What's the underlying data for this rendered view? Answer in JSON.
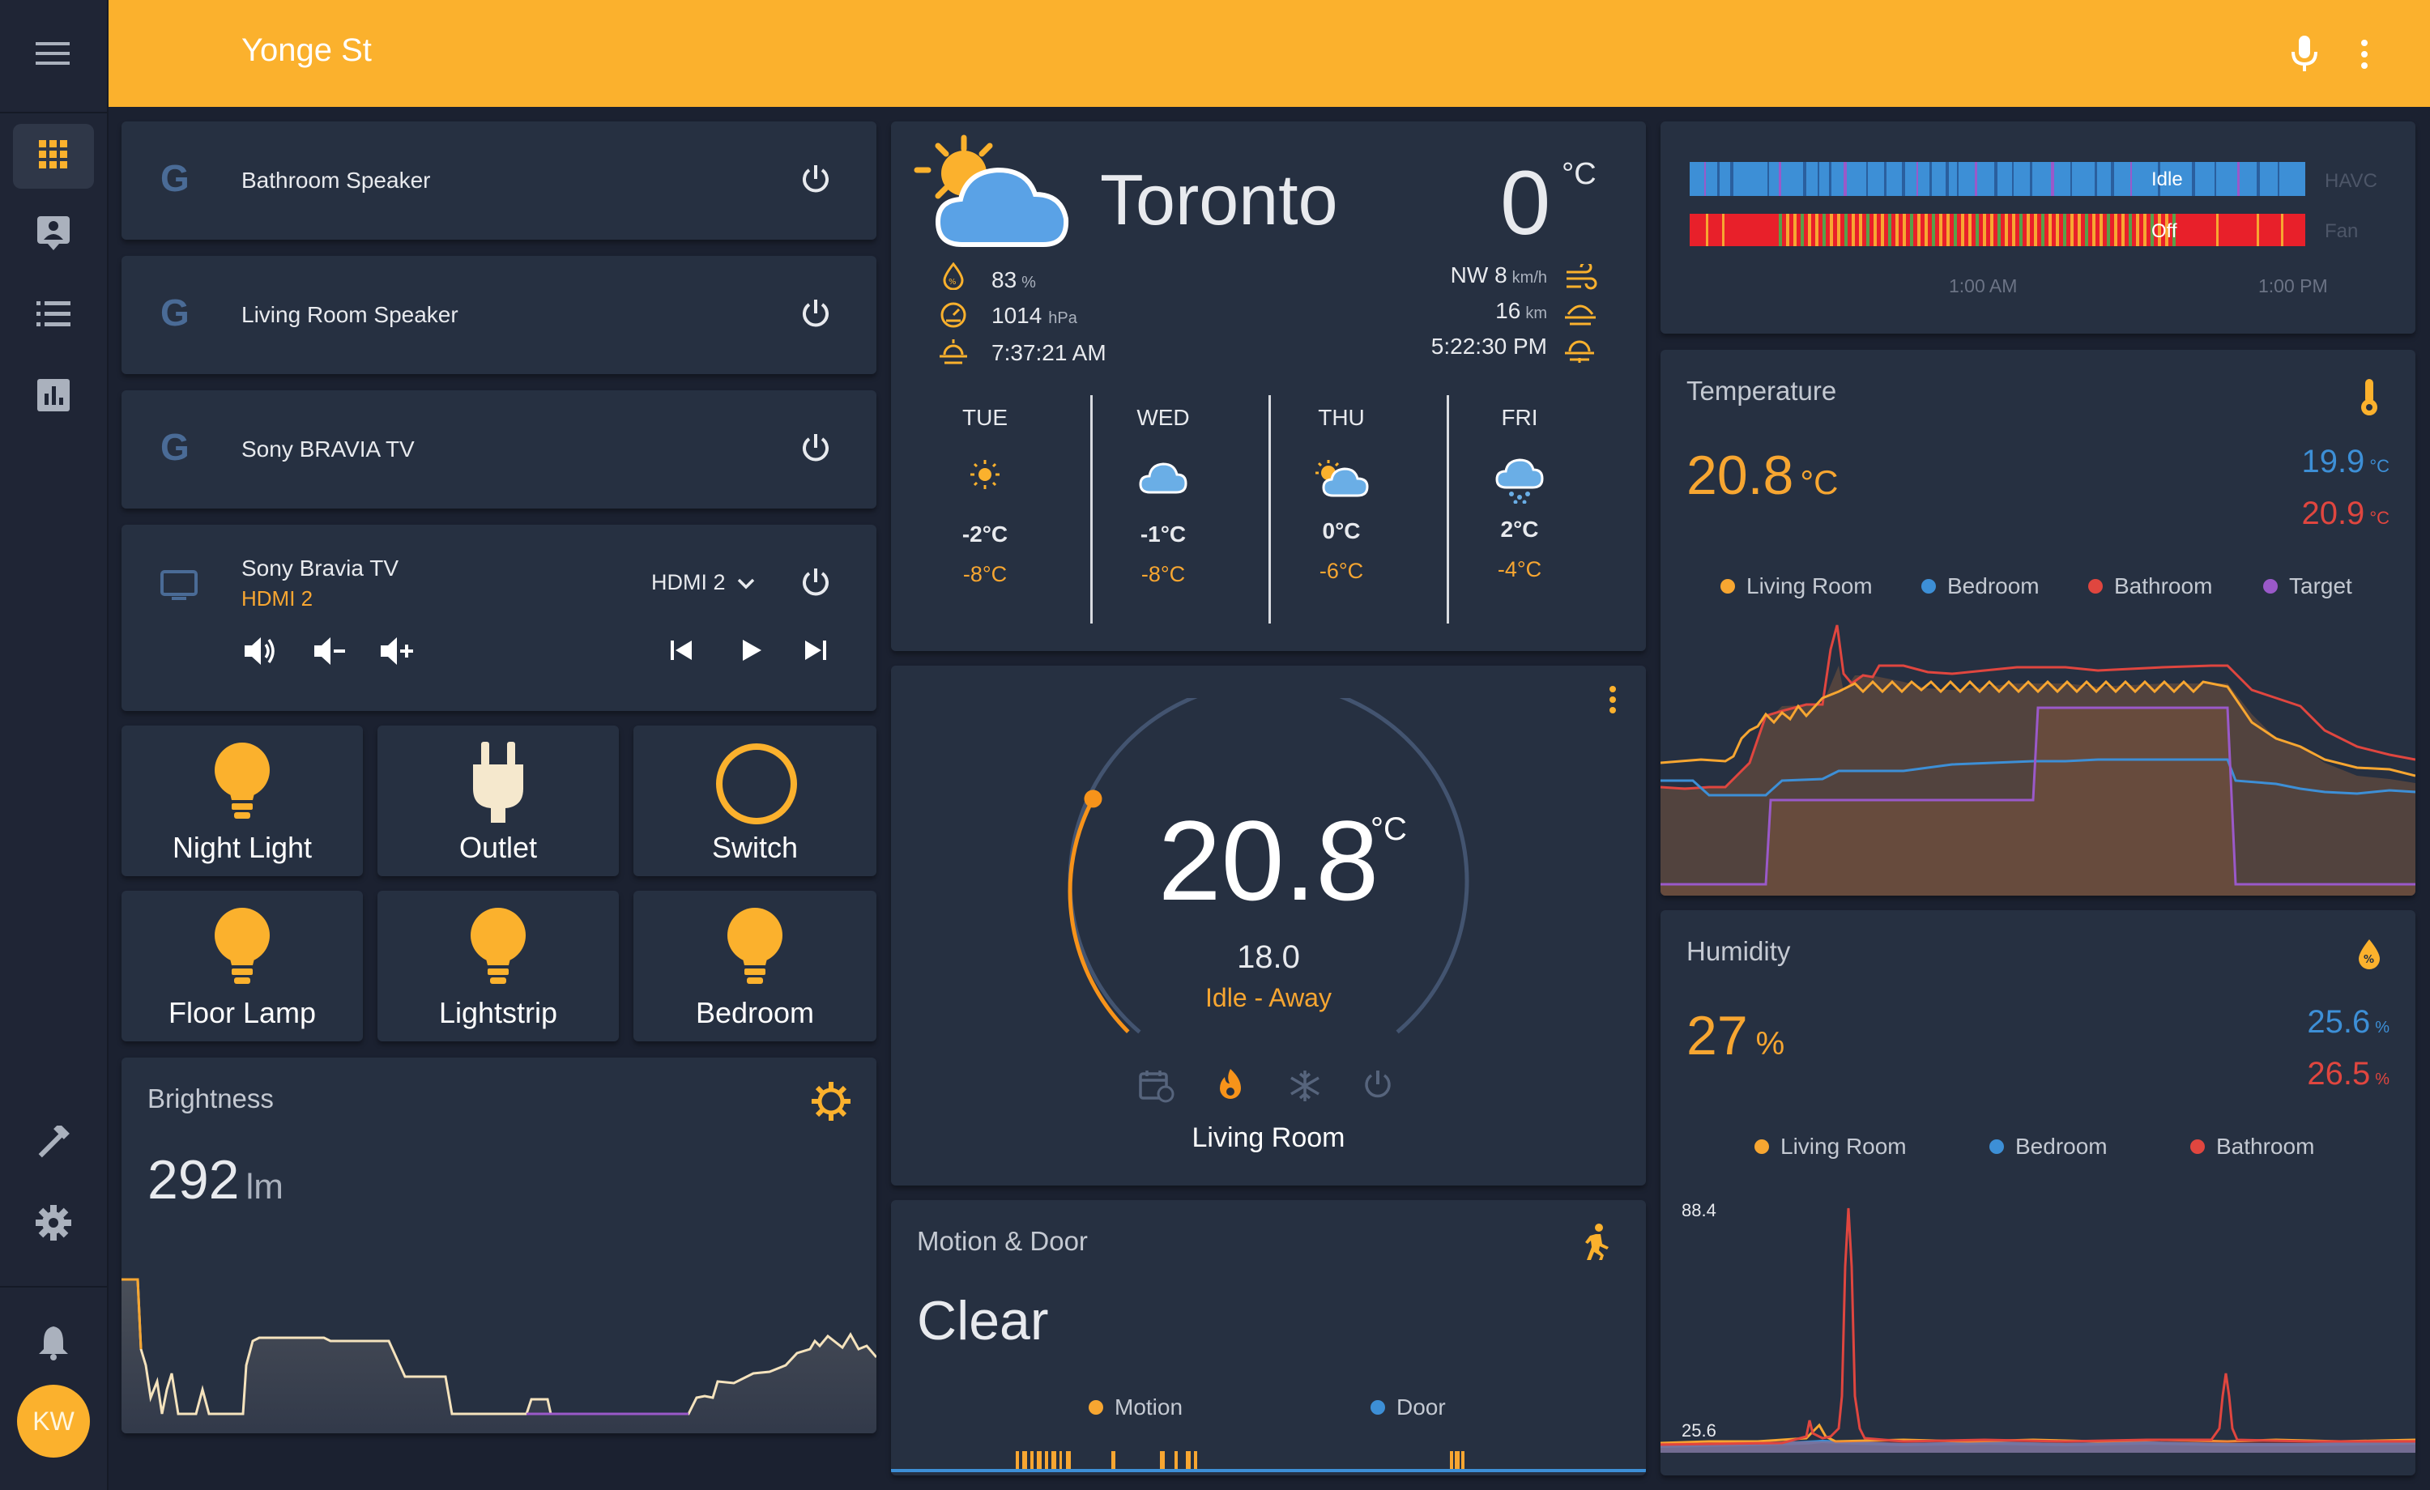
{
  "header": {
    "title": "Yonge St"
  },
  "sidebar": {
    "items": [
      {
        "name": "overview",
        "icon": "grid-icon"
      },
      {
        "name": "map",
        "icon": "badge-icon"
      },
      {
        "name": "logbook",
        "icon": "list-icon"
      },
      {
        "name": "history",
        "icon": "chart-icon"
      },
      {
        "name": "developer-tools",
        "icon": "hammer-icon"
      },
      {
        "name": "settings",
        "icon": "gear-icon"
      },
      {
        "name": "notifications",
        "icon": "bell-icon"
      }
    ],
    "avatar_initials": "KW"
  },
  "media": {
    "bathroom_speaker": "Bathroom Speaker",
    "living_room_speaker": "Living Room Speaker",
    "sony_bravia_tv": "Sony BRAVIA TV",
    "bravia": {
      "name": "Sony Bravia TV",
      "source": "HDMI 2",
      "source_select": "HDMI 2"
    }
  },
  "tiles": [
    {
      "label": "Night Light",
      "icon": "bulb-icon",
      "state": "on"
    },
    {
      "label": "Outlet",
      "icon": "plug-icon",
      "state": "on"
    },
    {
      "label": "Switch",
      "icon": "circle-icon",
      "state": "on"
    },
    {
      "label": "Floor Lamp",
      "icon": "bulb-icon",
      "state": "on"
    },
    {
      "label": "Lightstrip",
      "icon": "bulb-icon",
      "state": "on"
    },
    {
      "label": "Bedroom",
      "icon": "bulb-icon",
      "state": "on"
    }
  ],
  "brightness": {
    "title": "Brightness",
    "value": "292",
    "unit": "lm"
  },
  "weather": {
    "city": "Toronto",
    "temperature": "0",
    "temp_unit": "°C",
    "humidity": "83",
    "humidity_unit": "%",
    "pressure": "1014",
    "pressure_unit": "hPa",
    "sunrise": "7:37:21 AM",
    "wind": "NW 8",
    "wind_unit": "km/h",
    "visibility": "16",
    "visibility_unit": "km",
    "sunset": "5:22:30 PM",
    "forecast": [
      {
        "day": "TUE",
        "high": "-2°C",
        "low": "-8°C",
        "icon": "sunny-icon"
      },
      {
        "day": "WED",
        "high": "-1°C",
        "low": "-8°C",
        "icon": "cloudy-icon"
      },
      {
        "day": "THU",
        "high": "0°C",
        "low": "-6°C",
        "icon": "partly-cloudy-icon"
      },
      {
        "day": "FRI",
        "high": "2°C",
        "low": "-4°C",
        "icon": "snowy-icon"
      }
    ]
  },
  "thermostat": {
    "current": "20.8",
    "unit": "°C",
    "target": "18.0",
    "status": "Idle - Away",
    "name": "Living Room",
    "setpoint_fraction": 0.27
  },
  "motion": {
    "title": "Motion & Door",
    "state": "Clear",
    "legend": [
      "Motion",
      "Door"
    ]
  },
  "hvac_timeline": {
    "rows": [
      {
        "label": "HAVC",
        "state": "Idle"
      },
      {
        "label": "Fan",
        "state": "Off"
      }
    ],
    "ticks": [
      "1:00 AM",
      "1:00 PM"
    ]
  },
  "temperature": {
    "title": "Temperature",
    "main_value": "20.8",
    "main_unit": "°C",
    "secondary": [
      {
        "value": "19.9",
        "unit": "°C"
      },
      {
        "value": "20.9",
        "unit": "°C"
      }
    ],
    "legend": [
      "Living Room",
      "Bedroom",
      "Bathroom",
      "Target"
    ]
  },
  "humidity": {
    "title": "Humidity",
    "main_value": "27",
    "main_unit": "%",
    "secondary": [
      {
        "value": "25.6",
        "unit": "%"
      },
      {
        "value": "26.5",
        "unit": "%"
      }
    ],
    "legend": [
      "Living Room",
      "Bedroom",
      "Bathroom"
    ],
    "axis_max": "88.4",
    "axis_min": "25.6"
  },
  "colors": {
    "accent": "#fbb12d",
    "orange": "#f7a631",
    "blue": "#3d8fd6",
    "red": "#e0463f",
    "purple": "#9a59c9",
    "card": "#263041",
    "background": "#1b2130"
  }
}
